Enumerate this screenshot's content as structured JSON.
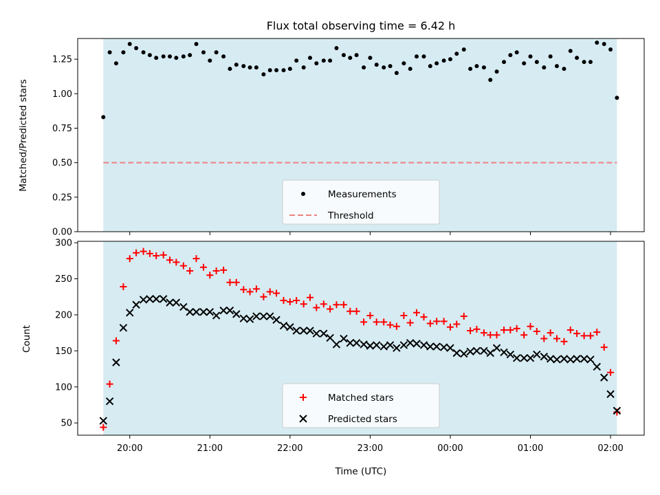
{
  "chart_data": [
    {
      "type": "scatter",
      "title": "Flux total observing time = 6.42 h",
      "xlabel": "",
      "ylabel": "Matched/Predicted stars",
      "ylim": [
        0,
        1.4
      ],
      "yticks": [
        "0.00",
        "0.25",
        "0.50",
        "0.75",
        "1.00",
        "1.25"
      ],
      "ytick_values": [
        0,
        0.25,
        0.5,
        0.75,
        1.0,
        1.25
      ],
      "shaded_span_hours": [
        19.67,
        26.08
      ],
      "legend_position": "lower center",
      "series": [
        {
          "name": "Measurements",
          "marker": "dot",
          "color": "#000000",
          "x": [
            19.67,
            19.75,
            19.83,
            19.92,
            20.0,
            20.08,
            20.17,
            20.25,
            20.33,
            20.42,
            20.5,
            20.58,
            20.67,
            20.75,
            20.83,
            20.92,
            21.0,
            21.08,
            21.17,
            21.25,
            21.33,
            21.42,
            21.5,
            21.58,
            21.67,
            21.75,
            21.83,
            21.92,
            22.0,
            22.08,
            22.17,
            22.25,
            22.33,
            22.42,
            22.5,
            22.58,
            22.67,
            22.75,
            22.83,
            22.92,
            23.0,
            23.08,
            23.17,
            23.25,
            23.33,
            23.42,
            23.5,
            23.58,
            23.67,
            23.75,
            23.83,
            23.92,
            24.0,
            24.08,
            24.17,
            24.25,
            24.33,
            24.42,
            24.5,
            24.58,
            24.67,
            24.75,
            24.83,
            24.92,
            25.0,
            25.08,
            25.17,
            25.25,
            25.33,
            25.42,
            25.5,
            25.58,
            25.67,
            25.75,
            25.83,
            25.92,
            26.0,
            26.08
          ],
          "values": [
            0.83,
            1.3,
            1.22,
            1.3,
            1.36,
            1.33,
            1.3,
            1.28,
            1.26,
            1.27,
            1.27,
            1.26,
            1.27,
            1.28,
            1.36,
            1.3,
            1.24,
            1.3,
            1.27,
            1.18,
            1.21,
            1.2,
            1.19,
            1.19,
            1.14,
            1.17,
            1.17,
            1.17,
            1.18,
            1.24,
            1.19,
            1.26,
            1.22,
            1.24,
            1.24,
            1.33,
            1.28,
            1.26,
            1.28,
            1.19,
            1.26,
            1.21,
            1.19,
            1.2,
            1.15,
            1.22,
            1.18,
            1.27,
            1.27,
            1.2,
            1.22,
            1.24,
            1.25,
            1.29,
            1.32,
            1.18,
            1.2,
            1.19,
            1.1,
            1.16,
            1.23,
            1.28,
            1.3,
            1.22,
            1.27,
            1.23,
            1.19,
            1.27,
            1.2,
            1.18,
            1.31,
            1.26,
            1.23,
            1.23,
            1.37,
            1.36,
            1.32,
            0.97
          ]
        },
        {
          "name": "Threshold",
          "marker": "dashed-line",
          "color": "#f08080",
          "values": [
            0.5
          ]
        }
      ]
    },
    {
      "type": "scatter",
      "title": "",
      "xlabel": "Time (UTC)",
      "ylabel": "Count",
      "ylim": [
        33,
        302
      ],
      "yticks": [
        "50",
        "100",
        "150",
        "200",
        "250",
        "300"
      ],
      "ytick_values": [
        50,
        100,
        150,
        200,
        250,
        300
      ],
      "xticks": [
        "20:00",
        "21:00",
        "22:00",
        "23:00",
        "00:00",
        "01:00",
        "02:00"
      ],
      "xtick_values": [
        20,
        21,
        22,
        23,
        24,
        25,
        26
      ],
      "xlim_hours": [
        19.35,
        26.42
      ],
      "shaded_span_hours": [
        19.67,
        26.08
      ],
      "legend_position": "lower center",
      "series": [
        {
          "name": "Matched stars",
          "marker": "plus",
          "color": "#ff0000",
          "x": [
            19.67,
            19.75,
            19.83,
            19.92,
            20.0,
            20.08,
            20.17,
            20.25,
            20.33,
            20.42,
            20.5,
            20.58,
            20.67,
            20.75,
            20.83,
            20.92,
            21.0,
            21.08,
            21.17,
            21.25,
            21.33,
            21.42,
            21.5,
            21.58,
            21.67,
            21.75,
            21.83,
            21.92,
            22.0,
            22.08,
            22.17,
            22.25,
            22.33,
            22.42,
            22.5,
            22.58,
            22.67,
            22.75,
            22.83,
            22.92,
            23.0,
            23.08,
            23.17,
            23.25,
            23.33,
            23.42,
            23.5,
            23.58,
            23.67,
            23.75,
            23.83,
            23.92,
            24.0,
            24.08,
            24.17,
            24.25,
            24.33,
            24.42,
            24.5,
            24.58,
            24.67,
            24.75,
            24.83,
            24.92,
            25.0,
            25.08,
            25.17,
            25.25,
            25.33,
            25.42,
            25.5,
            25.58,
            25.67,
            25.75,
            25.83,
            25.92,
            26.0,
            26.08
          ],
          "values": [
            44,
            104,
            164,
            239,
            278,
            286,
            288,
            285,
            282,
            283,
            276,
            273,
            268,
            261,
            278,
            266,
            255,
            261,
            262,
            245,
            245,
            235,
            232,
            236,
            225,
            232,
            230,
            220,
            218,
            220,
            215,
            224,
            210,
            215,
            208,
            214,
            214,
            205,
            205,
            190,
            199,
            190,
            190,
            186,
            184,
            199,
            189,
            203,
            197,
            188,
            191,
            191,
            183,
            187,
            198,
            178,
            180,
            175,
            172,
            172,
            179,
            179,
            181,
            172,
            184,
            177,
            167,
            175,
            167,
            163,
            179,
            174,
            171,
            171,
            176,
            155,
            120,
            65
          ]
        },
        {
          "name": "Predicted stars",
          "marker": "x",
          "color": "#000000",
          "x": [
            19.67,
            19.75,
            19.83,
            19.92,
            20.0,
            20.08,
            20.17,
            20.25,
            20.33,
            20.42,
            20.5,
            20.58,
            20.67,
            20.75,
            20.83,
            20.92,
            21.0,
            21.08,
            21.17,
            21.25,
            21.33,
            21.42,
            21.5,
            21.58,
            21.67,
            21.75,
            21.83,
            21.92,
            22.0,
            22.08,
            22.17,
            22.25,
            22.33,
            22.42,
            22.5,
            22.58,
            22.67,
            22.75,
            22.83,
            22.92,
            23.0,
            23.08,
            23.17,
            23.25,
            23.33,
            23.42,
            23.5,
            23.58,
            23.67,
            23.75,
            23.83,
            23.92,
            24.0,
            24.08,
            24.17,
            24.25,
            24.33,
            24.42,
            24.5,
            24.58,
            24.67,
            24.75,
            24.83,
            24.92,
            25.0,
            25.08,
            25.17,
            25.25,
            25.33,
            25.42,
            25.5,
            25.58,
            25.67,
            25.75,
            25.83,
            25.92,
            26.0,
            26.08
          ],
          "values": [
            53,
            80,
            134,
            182,
            203,
            214,
            221,
            222,
            222,
            222,
            217,
            217,
            211,
            204,
            204,
            204,
            204,
            199,
            206,
            206,
            201,
            195,
            194,
            198,
            198,
            198,
            193,
            185,
            183,
            178,
            178,
            178,
            174,
            174,
            168,
            159,
            167,
            161,
            161,
            159,
            157,
            158,
            156,
            158,
            154,
            158,
            161,
            160,
            158,
            156,
            156,
            155,
            154,
            147,
            146,
            149,
            150,
            150,
            147,
            154,
            148,
            145,
            140,
            140,
            140,
            145,
            142,
            139,
            138,
            139,
            138,
            139,
            139,
            138,
            128,
            113,
            90,
            67
          ]
        }
      ]
    }
  ]
}
